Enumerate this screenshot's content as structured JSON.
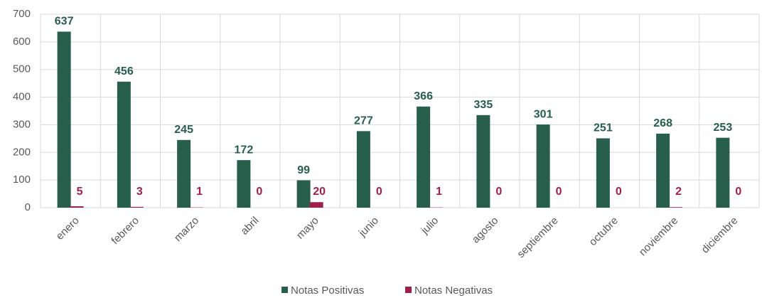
{
  "chart_data": {
    "type": "bar",
    "categories": [
      "enero",
      "febrero",
      "marzo",
      "abril",
      "mayo",
      "junio",
      "julio",
      "agosto",
      "septiembre",
      "octubre",
      "noviembre",
      "diciembre"
    ],
    "series": [
      {
        "name": "Notas Positivas",
        "color": "#275e4c",
        "values": [
          637,
          456,
          245,
          172,
          99,
          277,
          366,
          335,
          301,
          251,
          268,
          253
        ]
      },
      {
        "name": "Notas Negativas",
        "color": "#9e1f48",
        "values": [
          5,
          3,
          1,
          0,
          20,
          0,
          1,
          0,
          0,
          0,
          2,
          0
        ]
      }
    ],
    "ylim": [
      0,
      700
    ],
    "yticks": [
      0,
      100,
      200,
      300,
      400,
      500,
      600,
      700
    ],
    "grid": true,
    "legend": "bottom"
  }
}
